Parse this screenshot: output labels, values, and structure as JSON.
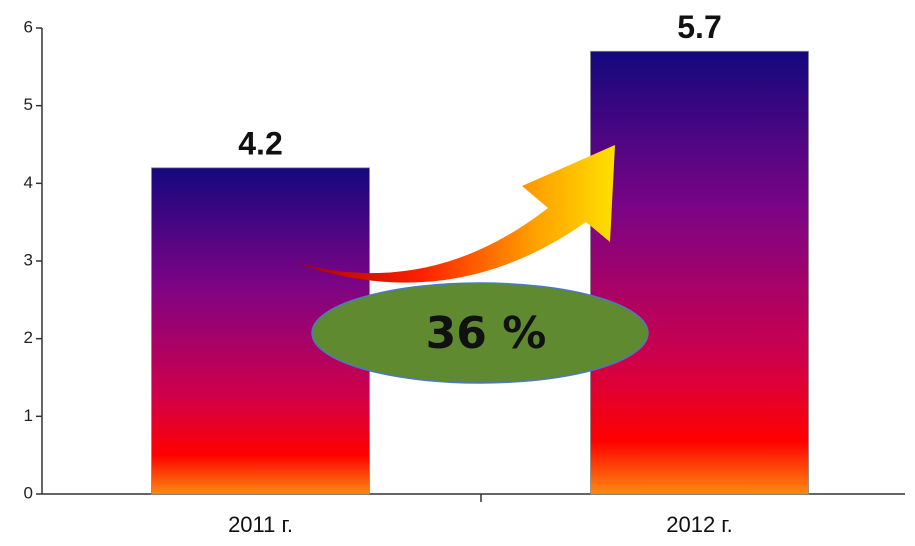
{
  "chart_data": {
    "type": "bar",
    "categories": [
      "2011 г.",
      "2012 г."
    ],
    "values": [
      4.2,
      5.7
    ],
    "ylim": [
      0,
      6
    ],
    "yticks": [
      0,
      1,
      2,
      3,
      4,
      5,
      6
    ],
    "annotation": "36 %"
  }
}
